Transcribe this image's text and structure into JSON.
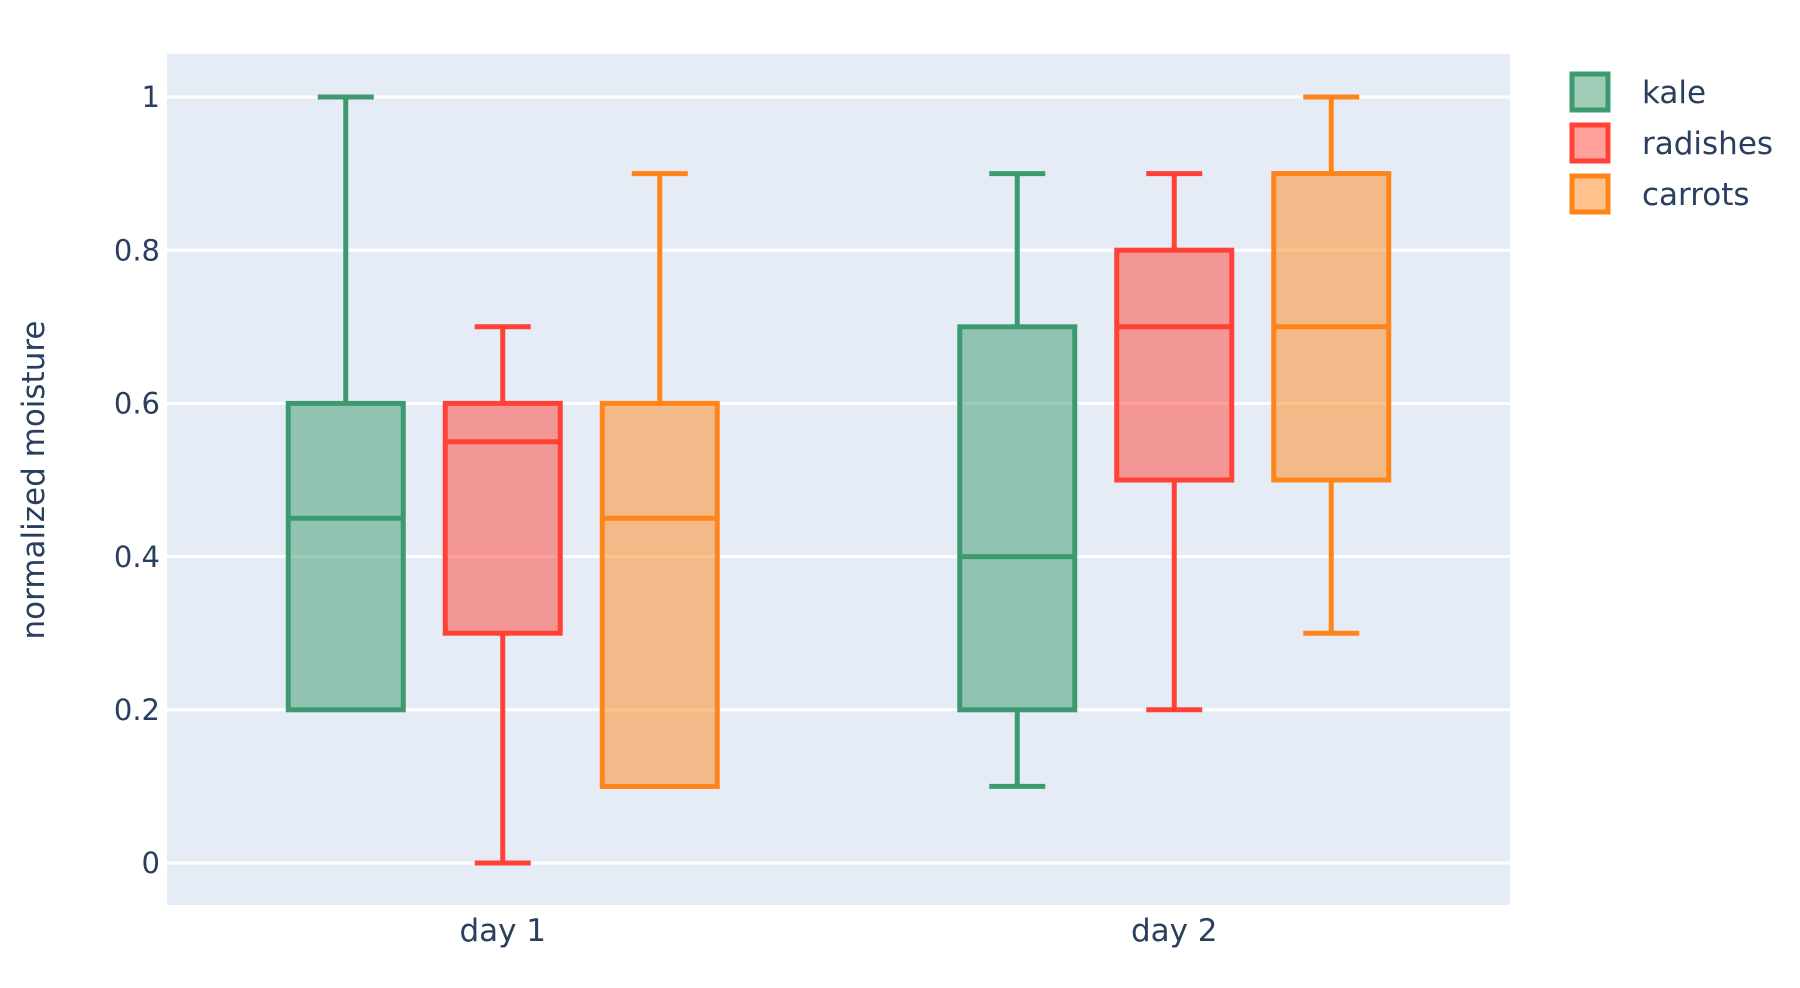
{
  "chart_data": {
    "type": "box",
    "title": "",
    "xlabel": "",
    "ylabel": "normalized moisture",
    "categories": [
      "day 1",
      "day 2"
    ],
    "y_ticks": [
      "0",
      "0.2",
      "0.4",
      "0.6",
      "0.8",
      "1"
    ],
    "y_tick_values": [
      0,
      0.2,
      0.4,
      0.6,
      0.8,
      1
    ],
    "ylim": [
      -0.056,
      1.056
    ],
    "grid": true,
    "boxmode": "group",
    "orientation": "vertical",
    "legend_position": "top-right",
    "series": [
      {
        "name": "kale",
        "color": "#3D9970",
        "boxes": [
          {
            "category": "day 1",
            "whisker_low": 0.2,
            "q1": 0.2,
            "median": 0.45,
            "q3": 0.6,
            "whisker_high": 1.0
          },
          {
            "category": "day 2",
            "whisker_low": 0.1,
            "q1": 0.2,
            "median": 0.4,
            "q3": 0.7,
            "whisker_high": 0.9
          }
        ]
      },
      {
        "name": "radishes",
        "color": "#FF4136",
        "boxes": [
          {
            "category": "day 1",
            "whisker_low": 0.0,
            "q1": 0.3,
            "median": 0.55,
            "q3": 0.6,
            "whisker_high": 0.7
          },
          {
            "category": "day 2",
            "whisker_low": 0.2,
            "q1": 0.5,
            "median": 0.7,
            "q3": 0.8,
            "whisker_high": 0.9
          }
        ]
      },
      {
        "name": "carrots",
        "color": "#FF851B",
        "boxes": [
          {
            "category": "day 1",
            "whisker_low": 0.1,
            "q1": 0.1,
            "median": 0.45,
            "q3": 0.6,
            "whisker_high": 0.9
          },
          {
            "category": "day 2",
            "whisker_low": 0.3,
            "q1": 0.5,
            "median": 0.7,
            "q3": 0.9,
            "whisker_high": 1.0
          }
        ]
      }
    ],
    "style": {
      "page_bg": "#FFFFFF",
      "plot_bg": "#E5ECF6",
      "grid_color": "#FFFFFF",
      "text_color": "#2A3F5F",
      "fill_opacity": 0.5
    }
  }
}
